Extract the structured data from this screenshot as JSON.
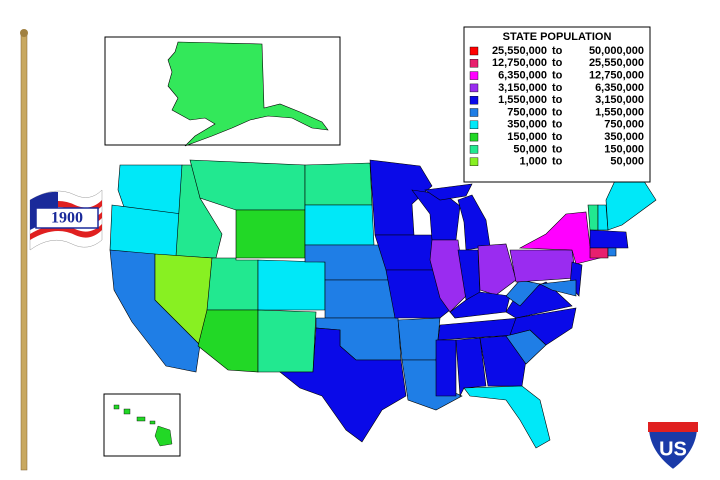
{
  "legend": {
    "title": "STATE POPULATION",
    "range_word": "to",
    "entries": [
      {
        "from": "25,550,000",
        "to": "50,000,000",
        "color": "#ff0000"
      },
      {
        "from": "12,750,000",
        "to": "25,550,000",
        "color": "#e8206e"
      },
      {
        "from": "6,350,000",
        "to": "12,750,000",
        "color": "#ff00ff"
      },
      {
        "from": "3,150,000",
        "to": "6,350,000",
        "color": "#9a2cf0"
      },
      {
        "from": "1,550,000",
        "to": "3,150,000",
        "color": "#0a0ae8"
      },
      {
        "from": "750,000",
        "to": "1,550,000",
        "color": "#1f7ee6"
      },
      {
        "from": "350,000",
        "to": "750,000",
        "color": "#00e8f8"
      },
      {
        "from": "150,000",
        "to": "350,000",
        "color": "#22d826"
      },
      {
        "from": "50,000",
        "to": "150,000",
        "color": "#22e890"
      },
      {
        "from": "1,000",
        "to": "50,000",
        "color": "#88f022"
      }
    ]
  },
  "flag": {
    "year": "1900"
  },
  "shield": {
    "label": "US"
  }
}
